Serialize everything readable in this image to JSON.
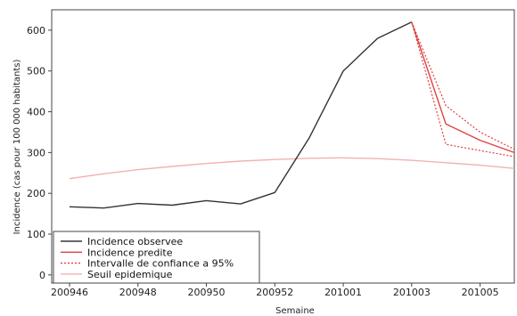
{
  "chart_data": {
    "type": "line",
    "title": "",
    "xlabel": "Semaine",
    "ylabel": "Incidence (cas pour 100 000 habitants)",
    "x": [
      "200946",
      "200947",
      "200948",
      "200949",
      "200950",
      "200951",
      "200952",
      "200953",
      "201001",
      "201002",
      "201003",
      "201004",
      "201005",
      "201006"
    ],
    "xticks": [
      "200946",
      "200948",
      "200950",
      "200952",
      "201001",
      "201003",
      "201005"
    ],
    "yticks": [
      0,
      100,
      200,
      300,
      400,
      500,
      600
    ],
    "ylim": [
      -20,
      650
    ],
    "grid": false,
    "legend_position": "bottom-left",
    "series": [
      {
        "name": "Incidence observee",
        "color": "#333333",
        "style": "solid",
        "points": [
          [
            "200946",
            167
          ],
          [
            "200947",
            164
          ],
          [
            "200948",
            175
          ],
          [
            "200949",
            171
          ],
          [
            "200950",
            182
          ],
          [
            "200951",
            174
          ],
          [
            "200952",
            202
          ],
          [
            "200953",
            335
          ],
          [
            "201001",
            500
          ],
          [
            "201002",
            580
          ],
          [
            "201003",
            620
          ]
        ]
      },
      {
        "name": "Incidence predite",
        "color": "#e04040",
        "style": "solid",
        "points": [
          [
            "201003",
            620
          ],
          [
            "201004",
            370
          ],
          [
            "201005",
            330
          ],
          [
            "201006",
            300
          ]
        ]
      },
      {
        "name": "Intervalle de confiance a 95%",
        "color": "#e04040",
        "style": "dotted",
        "bands": [
          [
            [
              "201003",
              620
            ],
            [
              "201004",
              415
            ],
            [
              "201005",
              350
            ],
            [
              "201006",
              308
            ]
          ],
          [
            [
              "201003",
              620
            ],
            [
              "201004",
              320
            ],
            [
              "201005",
              305
            ],
            [
              "201006",
              290
            ]
          ]
        ]
      },
      {
        "name": "Seuil epidemique",
        "color": "#f4b0b0",
        "style": "solid",
        "points": [
          [
            "200946",
            236
          ],
          [
            "200947",
            248
          ],
          [
            "200948",
            258
          ],
          [
            "200949",
            266
          ],
          [
            "200950",
            273
          ],
          [
            "200951",
            279
          ],
          [
            "200952",
            283
          ],
          [
            "200953",
            286
          ],
          [
            "201001",
            287
          ],
          [
            "201002",
            285
          ],
          [
            "201003",
            281
          ],
          [
            "201004",
            275
          ],
          [
            "201005",
            269
          ],
          [
            "201006",
            261
          ]
        ]
      }
    ]
  }
}
